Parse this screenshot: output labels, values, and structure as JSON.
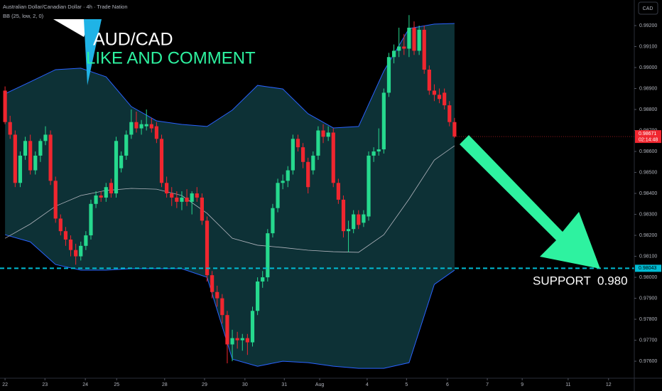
{
  "chart_data": {
    "type": "candlestick",
    "title": "Australian Dollar/Canadian Dollar · 4h · Trade Nation",
    "indicator": "BB (25, low, 2, 0)",
    "currency": "CAD",
    "annotations": {
      "headline": "AUD/CAD",
      "call": "LIKE AND COMMENT",
      "support_text": "SUPPORT  0.980"
    },
    "up_color": "#26d98e",
    "down_color": "#f0262f",
    "candles": [
      [
        0.9889,
        0.9891,
        0.9873,
        0.9874
      ],
      [
        0.9874,
        0.9877,
        0.9866,
        0.9868
      ],
      [
        0.9868,
        0.987,
        0.9843,
        0.9845
      ],
      [
        0.9845,
        0.986,
        0.9843,
        0.9858
      ],
      [
        0.9858,
        0.9867,
        0.9856,
        0.9865
      ],
      [
        0.9865,
        0.9868,
        0.9849,
        0.9851
      ],
      [
        0.9851,
        0.986,
        0.9849,
        0.9858
      ],
      [
        0.9858,
        0.9866,
        0.9855,
        0.9865
      ],
      [
        0.9865,
        0.9872,
        0.9863,
        0.9868
      ],
      [
        0.9868,
        0.987,
        0.9844,
        0.9846
      ],
      [
        0.9846,
        0.9848,
        0.9826,
        0.9828
      ],
      [
        0.9828,
        0.983,
        0.982,
        0.9822
      ],
      [
        0.9822,
        0.9824,
        0.9815,
        0.9818
      ],
      [
        0.9818,
        0.982,
        0.981,
        0.9813
      ],
      [
        0.9813,
        0.9816,
        0.9806,
        0.981
      ],
      [
        0.981,
        0.9817,
        0.9808,
        0.9815
      ],
      [
        0.9815,
        0.9822,
        0.9813,
        0.982
      ],
      [
        0.982,
        0.9837,
        0.9818,
        0.9835
      ],
      [
        0.9835,
        0.9841,
        0.9833,
        0.9839
      ],
      [
        0.9839,
        0.9841,
        0.9836,
        0.9838
      ],
      [
        0.9838,
        0.9845,
        0.9836,
        0.9843
      ],
      [
        0.9845,
        0.9847,
        0.9838,
        0.984
      ],
      [
        0.984,
        0.9867,
        0.9838,
        0.9865
      ],
      [
        0.9852,
        0.986,
        0.985,
        0.9858
      ],
      [
        0.9858,
        0.987,
        0.9856,
        0.9868
      ],
      [
        0.9868,
        0.988,
        0.9866,
        0.9874
      ],
      [
        0.9874,
        0.9879,
        0.9869,
        0.9871
      ],
      [
        0.9871,
        0.9875,
        0.9868,
        0.9873
      ],
      [
        0.9872,
        0.988,
        0.987,
        0.9873
      ],
      [
        0.9873,
        0.9876,
        0.9869,
        0.9871
      ],
      [
        0.9872,
        0.9874,
        0.9864,
        0.9866
      ],
      [
        0.9866,
        0.9868,
        0.9843,
        0.9845
      ],
      [
        0.9845,
        0.9848,
        0.9838,
        0.984
      ],
      [
        0.984,
        0.9843,
        0.9834,
        0.9838
      ],
      [
        0.9838,
        0.9841,
        0.9833,
        0.9836
      ],
      [
        0.9836,
        0.9841,
        0.9832,
        0.9838
      ],
      [
        0.9838,
        0.9842,
        0.9834,
        0.9836
      ],
      [
        0.9836,
        0.9841,
        0.983,
        0.984
      ],
      [
        0.984,
        0.9843,
        0.9836,
        0.9838
      ],
      [
        0.9838,
        0.984,
        0.9825,
        0.9827
      ],
      [
        0.9827,
        0.9829,
        0.9798,
        0.9801
      ],
      [
        0.9801,
        0.9803,
        0.979,
        0.9793
      ],
      [
        0.9793,
        0.9796,
        0.9786,
        0.979
      ],
      [
        0.979,
        0.9792,
        0.9778,
        0.9782
      ],
      [
        0.9782,
        0.9784,
        0.9759,
        0.9768
      ],
      [
        0.9768,
        0.9775,
        0.976,
        0.9771
      ],
      [
        0.9771,
        0.9774,
        0.9766,
        0.977
      ],
      [
        0.977,
        0.9773,
        0.9765,
        0.9771
      ],
      [
        0.9771,
        0.9773,
        0.9763,
        0.9769
      ],
      [
        0.9769,
        0.9786,
        0.9767,
        0.9784
      ],
      [
        0.9784,
        0.98,
        0.9782,
        0.9798
      ],
      [
        0.9798,
        0.9803,
        0.9795,
        0.98
      ],
      [
        0.98,
        0.9823,
        0.9798,
        0.9821
      ],
      [
        0.9821,
        0.9835,
        0.9819,
        0.9833
      ],
      [
        0.9833,
        0.9847,
        0.9831,
        0.9845
      ],
      [
        0.9845,
        0.9849,
        0.9842,
        0.9846
      ],
      [
        0.9846,
        0.9853,
        0.9843,
        0.9851
      ],
      [
        0.9851,
        0.9868,
        0.9849,
        0.9866
      ],
      [
        0.9866,
        0.9868,
        0.986,
        0.9862
      ],
      [
        0.9862,
        0.9864,
        0.9852,
        0.9855
      ],
      [
        0.9855,
        0.9857,
        0.984,
        0.9843
      ],
      [
        0.9851,
        0.986,
        0.9849,
        0.9858
      ],
      [
        0.9858,
        0.9872,
        0.9856,
        0.987
      ],
      [
        0.987,
        0.9873,
        0.9864,
        0.9867
      ],
      [
        0.9867,
        0.9872,
        0.9865,
        0.9869
      ],
      [
        0.9869,
        0.9871,
        0.9843,
        0.9845
      ],
      [
        0.9845,
        0.9847,
        0.9835,
        0.9837
      ],
      [
        0.9837,
        0.9839,
        0.9819,
        0.9822
      ],
      [
        0.9822,
        0.9827,
        0.9812,
        0.9823
      ],
      [
        0.9823,
        0.9832,
        0.9821,
        0.983
      ],
      [
        0.983,
        0.9832,
        0.9823,
        0.9825
      ],
      [
        0.9826,
        0.9832,
        0.9824,
        0.983
      ],
      [
        0.9829,
        0.986,
        0.9827,
        0.9858
      ],
      [
        0.9858,
        0.9862,
        0.9855,
        0.986
      ],
      [
        0.986,
        0.9871,
        0.9858,
        0.9861
      ],
      [
        0.9861,
        0.989,
        0.9859,
        0.9888
      ],
      [
        0.9888,
        0.9907,
        0.9886,
        0.9905
      ],
      [
        0.9905,
        0.9911,
        0.9902,
        0.9908
      ],
      [
        0.9908,
        0.9919,
        0.9905,
        0.991
      ],
      [
        0.991,
        0.9916,
        0.9906,
        0.9909
      ],
      [
        0.9909,
        0.9925,
        0.9905,
        0.9919
      ],
      [
        0.9919,
        0.9922,
        0.9906,
        0.9908
      ],
      [
        0.9908,
        0.992,
        0.9906,
        0.9918
      ],
      [
        0.9918,
        0.992,
        0.9897,
        0.9899
      ],
      [
        0.9899,
        0.9901,
        0.9887,
        0.9889
      ],
      [
        0.9889,
        0.9892,
        0.9884,
        0.9887
      ],
      [
        0.9887,
        0.989,
        0.9883,
        0.9885
      ],
      [
        0.9888,
        0.989,
        0.988,
        0.9882
      ],
      [
        0.9882,
        0.9884,
        0.9872,
        0.9874
      ],
      [
        0.9874,
        0.9876,
        0.98665,
        0.98671
      ]
    ],
    "bands": {
      "x": [
        0,
        5,
        10,
        15,
        20,
        25,
        30,
        35,
        40,
        45,
        50,
        55,
        60,
        65,
        70,
        75,
        80,
        85,
        89
      ],
      "upper": [
        0.98875,
        0.98932,
        0.9899,
        0.98997,
        0.98956,
        0.98814,
        0.98746,
        0.98729,
        0.98719,
        0.98797,
        0.98915,
        0.98898,
        0.9878,
        0.98712,
        0.98719,
        0.98983,
        0.99186,
        0.99207,
        0.9921
      ],
      "middle": [
        0.98186,
        0.98254,
        0.98339,
        0.9839,
        0.98414,
        0.98424,
        0.9842,
        0.9839,
        0.98305,
        0.98186,
        0.98153,
        0.98142,
        0.98129,
        0.98122,
        0.98119,
        0.98203,
        0.98373,
        0.98559,
        0.98627
      ],
      "lower": [
        0.98203,
        0.98169,
        0.98061,
        0.98034,
        0.98034,
        0.98041,
        0.98041,
        0.98041,
        0.98,
        0.9761,
        0.97576,
        0.976,
        0.97593,
        0.97576,
        0.97566,
        0.97566,
        0.97593,
        0.97966,
        0.98034
      ],
      "band_color": "#2962ff",
      "middle_color": "#b2b5be",
      "fill_color": "#0f3a40"
    },
    "last_price": {
      "value": 0.98671,
      "countdown": "02:14:48",
      "color": "#f0262f"
    },
    "support": {
      "value": 0.98043,
      "color": "#00bcd4"
    },
    "xlim": [
      -1,
      124.6
    ],
    "ylim": [
      0.97519,
      0.99322
    ],
    "xticks": [
      {
        "value": 0,
        "label": "22"
      },
      {
        "value": 7.9,
        "label": "23"
      },
      {
        "value": 15.9,
        "label": "24"
      },
      {
        "value": 22.1,
        "label": "25"
      },
      {
        "value": 31.6,
        "label": "28"
      },
      {
        "value": 39.5,
        "label": "29"
      },
      {
        "value": 47.5,
        "label": "30"
      },
      {
        "value": 55.3,
        "label": "31"
      },
      {
        "value": 62.3,
        "label": "Aug"
      },
      {
        "value": 71.7,
        "label": "4"
      },
      {
        "value": 79.5,
        "label": "5"
      },
      {
        "value": 87.6,
        "label": "6"
      },
      {
        "value": 95.5,
        "label": "7"
      },
      {
        "value": 102.4,
        "label": "9"
      },
      {
        "value": 111.5,
        "label": "11"
      },
      {
        "value": 119.5,
        "label": "12"
      }
    ],
    "yticks": [
      {
        "value": 0.992,
        "label": "0.99200"
      },
      {
        "value": 0.991,
        "label": "0.99100"
      },
      {
        "value": 0.99,
        "label": "0.99000"
      },
      {
        "value": 0.989,
        "label": "0.98900"
      },
      {
        "value": 0.988,
        "label": "0.98800"
      },
      {
        "value": 0.987,
        "label": "0.98700"
      },
      {
        "value": 0.986,
        "label": "0.98600"
      },
      {
        "value": 0.985,
        "label": "0.98500"
      },
      {
        "value": 0.984,
        "label": "0.98400"
      },
      {
        "value": 0.983,
        "label": "0.98300"
      },
      {
        "value": 0.982,
        "label": "0.98200"
      },
      {
        "value": 0.981,
        "label": "0.98100"
      },
      {
        "value": 0.98,
        "label": "0.98000"
      },
      {
        "value": 0.979,
        "label": "0.97900"
      },
      {
        "value": 0.978,
        "label": "0.97800"
      },
      {
        "value": 0.977,
        "label": "0.97700"
      },
      {
        "value": 0.976,
        "label": "0.97600"
      }
    ]
  }
}
